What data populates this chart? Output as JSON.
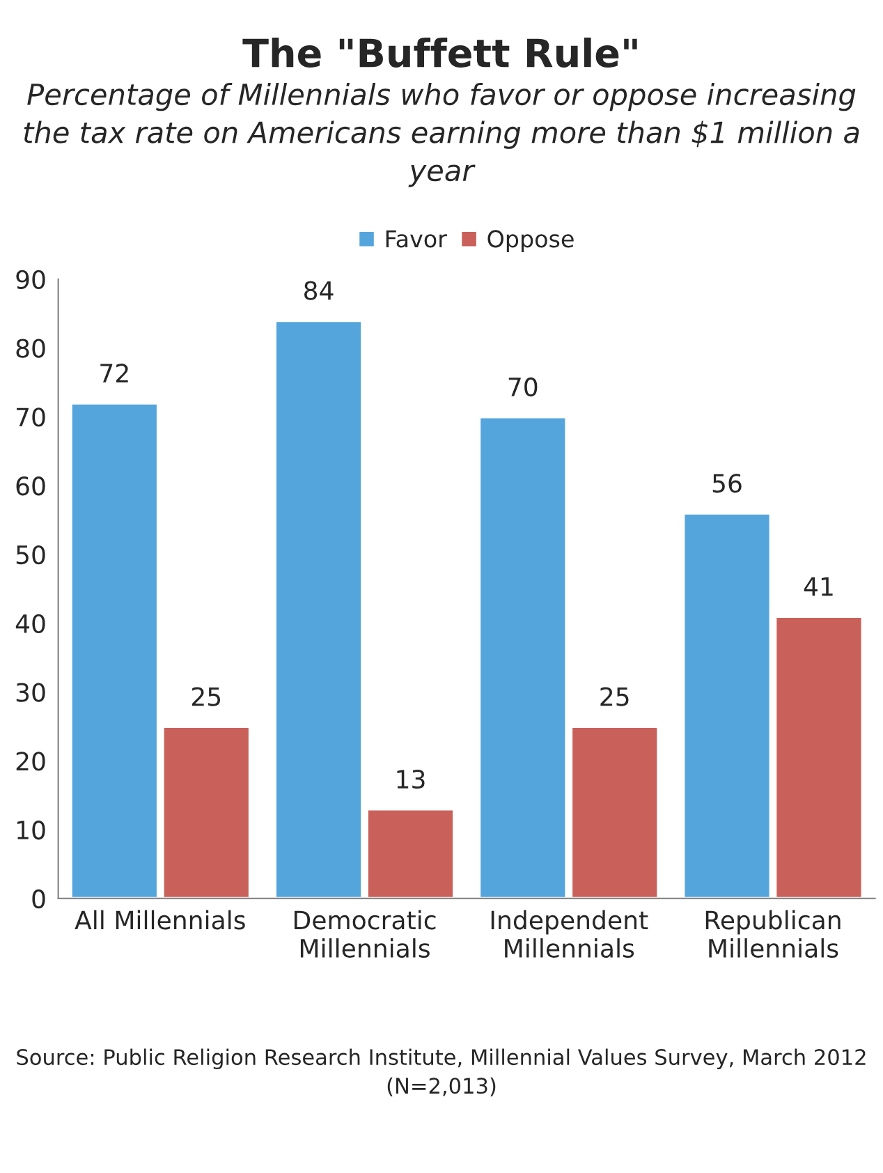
{
  "chart_data": {
    "type": "bar",
    "title": "The \"Buffett Rule\"",
    "subtitle": "Percentage of Millennials who favor or oppose increasing the tax rate on Americans earning more than $1 million a year",
    "categories": [
      "All Millennials",
      "Democratic Millennials",
      "Independent Millennials",
      "Republican Millennials"
    ],
    "series": [
      {
        "name": "Favor",
        "color": "#55a5dd",
        "values": [
          72,
          84,
          70,
          56
        ]
      },
      {
        "name": "Oppose",
        "color": "#c9605a",
        "values": [
          25,
          13,
          25,
          41
        ]
      }
    ],
    "ylim": [
      0,
      90
    ],
    "yticks": [
      0,
      10,
      20,
      30,
      40,
      50,
      60,
      70,
      80,
      90
    ],
    "data_labels": true,
    "grid": false,
    "legend": "top",
    "annotations": [
      "Source: Public Religion Research Institute, Millennial Values Survey, March 2012 (N=2,013)"
    ]
  }
}
